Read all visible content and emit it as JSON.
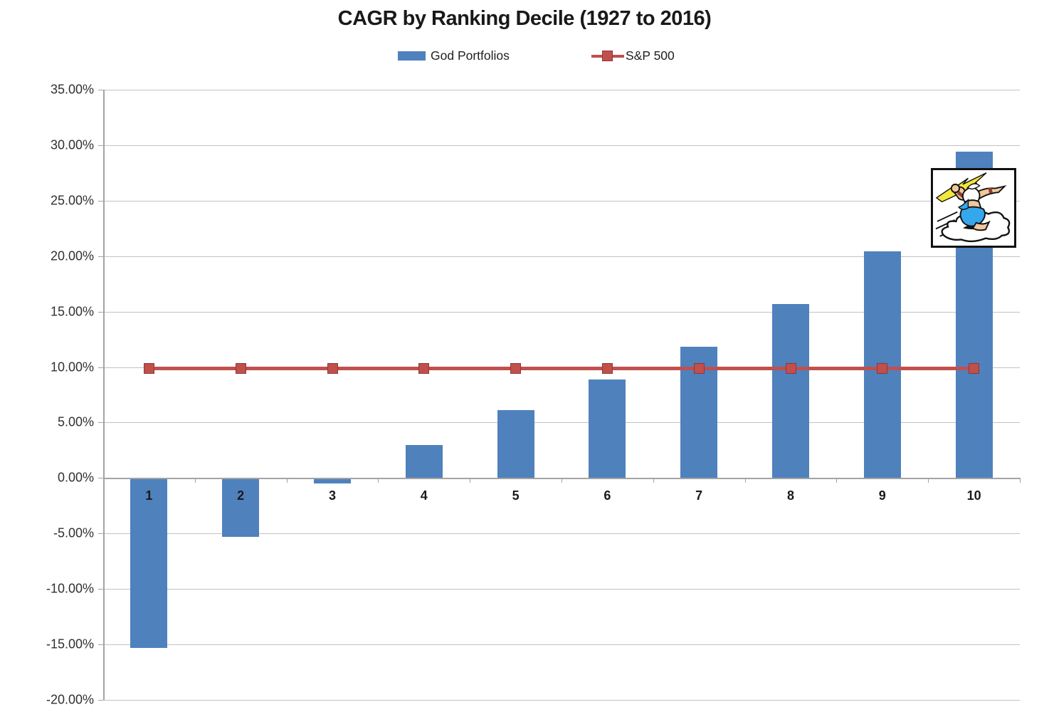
{
  "chart_data": {
    "type": "bar",
    "title": "CAGR by Ranking Decile (1927 to 2016)",
    "categories": [
      "1",
      "2",
      "3",
      "4",
      "5",
      "6",
      "7",
      "8",
      "9",
      "10"
    ],
    "series": [
      {
        "name": "God Portfolios",
        "type": "bar",
        "color": "#4F81BD",
        "values": [
          -15.3,
          -5.3,
          -0.5,
          3.0,
          6.1,
          8.9,
          11.8,
          15.7,
          20.4,
          29.4
        ]
      },
      {
        "name": "S&P 500",
        "type": "line",
        "color": "#C0504D",
        "marker_border_color": "#943634",
        "values": [
          9.9,
          9.9,
          9.9,
          9.9,
          9.9,
          9.9,
          9.9,
          9.9,
          9.9,
          9.9
        ]
      }
    ],
    "y_axis": {
      "min": -20,
      "max": 35,
      "step": 5,
      "tick_labels": [
        "35.00%",
        "30.00%",
        "25.00%",
        "20.00%",
        "15.00%",
        "10.00%",
        "5.00%",
        "0.00%",
        "-5.00%",
        "-10.00%",
        "-15.00%",
        "-20.00%"
      ]
    },
    "xlabel": "",
    "ylabel": "",
    "grid": true,
    "legend_position": "top"
  },
  "images": {
    "zeus_clipart": "zeus-throwing-lightning-on-cloud"
  }
}
